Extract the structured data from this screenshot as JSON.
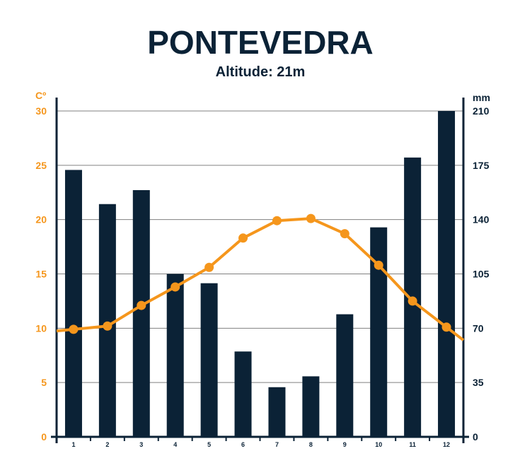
{
  "chart_data": {
    "type": "bar",
    "title": "PONTEVEDRA",
    "subtitle": "Altitude: 21m",
    "categories": [
      "1",
      "2",
      "3",
      "4",
      "5",
      "6",
      "7",
      "8",
      "9",
      "10",
      "11",
      "12"
    ],
    "left_axis": {
      "label": "Cº",
      "ylim": [
        0,
        30
      ],
      "ticks": [
        "0",
        "5",
        "10",
        "15",
        "20",
        "25",
        "30"
      ]
    },
    "right_axis": {
      "label": "mm",
      "ylim": [
        0,
        210
      ],
      "ticks": [
        "0",
        "35",
        "70",
        "105",
        "140",
        "175",
        "210"
      ]
    },
    "series": [
      {
        "kind": "bar",
        "axis": "right",
        "values": [
          172,
          150,
          159,
          105,
          99,
          55,
          32,
          39,
          79,
          135,
          180,
          210
        ]
      },
      {
        "kind": "line",
        "axis": "left",
        "values": [
          9.9,
          10.2,
          12.1,
          13.8,
          15.6,
          18.3,
          19.9,
          20.1,
          18.7,
          15.8,
          12.5,
          10.1
        ]
      }
    ],
    "grid": true,
    "colors": {
      "bars": "#0b2236",
      "line": "#f5961c",
      "left_axis_text": "#f5961c",
      "right_axis_text": "#0b2236",
      "grid": "#808080"
    }
  }
}
